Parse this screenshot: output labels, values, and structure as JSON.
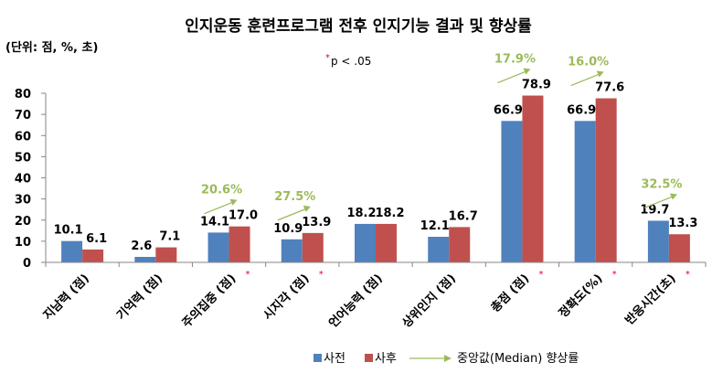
{
  "chart_data": {
    "type": "bar",
    "title": "인지운동 훈련프로그램 전후 인지기능 결과 및 향상률",
    "unit_note": "(단위: 점, %, 초)",
    "significance_note": "p < .05",
    "significance_marker": "*",
    "categories": [
      "지남력 (점)",
      "기억력 (점)",
      "주의집중 (점)",
      "시지각 (점)",
      "언어능력 (점)",
      "상위인지 (점)",
      "총점 (점)",
      "정확도(%)",
      "반응시간(초)"
    ],
    "significant": [
      false,
      false,
      true,
      true,
      false,
      false,
      true,
      true,
      true
    ],
    "series": [
      {
        "name": "사전",
        "color": "#4f81bd",
        "values": [
          10.1,
          2.6,
          14.1,
          10.9,
          18.2,
          12.1,
          66.9,
          66.9,
          19.7
        ],
        "labels": [
          "10.1",
          "2.6",
          "14.1",
          "10.9",
          "18.2",
          "12.1",
          "66.9",
          "66.9",
          "19.7"
        ]
      },
      {
        "name": "사후",
        "color": "#c0504d",
        "values": [
          6.1,
          7.1,
          17.0,
          13.9,
          18.2,
          16.7,
          78.9,
          77.6,
          13.3
        ],
        "labels": [
          "6.1",
          "7.1",
          "17.0",
          "13.9",
          "18.2",
          "16.7",
          "78.9",
          "77.6",
          "13.3"
        ]
      }
    ],
    "improvement": {
      "name": "중앙값(Median) 향상률",
      "color": "#9bbb59",
      "values": [
        null,
        null,
        "20.6%",
        "27.5%",
        null,
        null,
        "17.9%",
        "16.0%",
        "32.5%"
      ]
    },
    "ylim": [
      0,
      80
    ],
    "yticks": [
      "0",
      "10",
      "20",
      "30",
      "40",
      "50",
      "60",
      "70",
      "80"
    ],
    "legend_position": "bottom",
    "grid": false
  }
}
